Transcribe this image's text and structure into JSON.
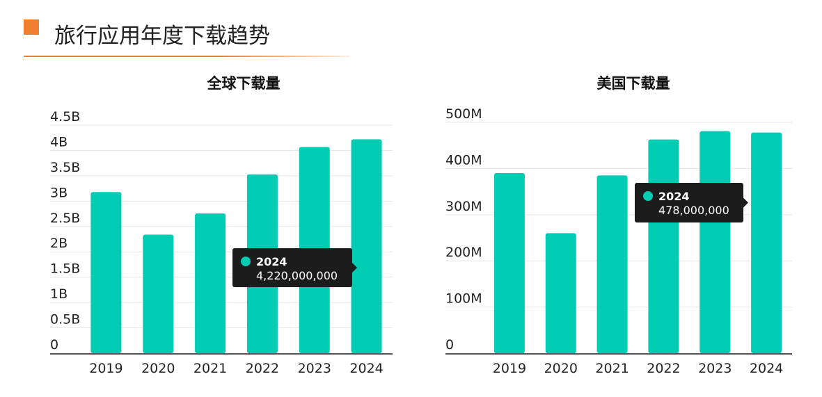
{
  "page": {
    "title": "旅行应用年度下载趋势"
  },
  "colors": {
    "accent": "#f0802f",
    "bar": "#00cbb3",
    "tooltip_bg": "#1c1c1c"
  },
  "chart_data": [
    {
      "type": "bar",
      "title": "全球下载量",
      "categories": [
        "2019",
        "2020",
        "2021",
        "2022",
        "2023",
        "2024"
      ],
      "series": [
        {
          "values": [
            3180000000,
            2340000000,
            2760000000,
            3530000000,
            4070000000,
            4220000000
          ]
        }
      ],
      "ylim": [
        0,
        4500000000
      ],
      "yticks": [
        "0",
        "0.5B",
        "1B",
        "1.5B",
        "2B",
        "2.5B",
        "3B",
        "3.5B",
        "4B",
        "4.5B"
      ],
      "grid": true,
      "tooltip": {
        "category": "2024",
        "value_text": "4,220,000,000"
      }
    },
    {
      "type": "bar",
      "title": "美国下载量",
      "categories": [
        "2019",
        "2020",
        "2021",
        "2022",
        "2023",
        "2024"
      ],
      "series": [
        {
          "values": [
            390000000,
            260000000,
            385000000,
            463000000,
            481000000,
            478000000
          ]
        }
      ],
      "ylim": [
        0,
        500000000
      ],
      "yticks": [
        "0",
        "100M",
        "200M",
        "300M",
        "400M",
        "500M"
      ],
      "grid": true,
      "tooltip": {
        "category": "2024",
        "value_text": "478,000,000"
      }
    }
  ]
}
